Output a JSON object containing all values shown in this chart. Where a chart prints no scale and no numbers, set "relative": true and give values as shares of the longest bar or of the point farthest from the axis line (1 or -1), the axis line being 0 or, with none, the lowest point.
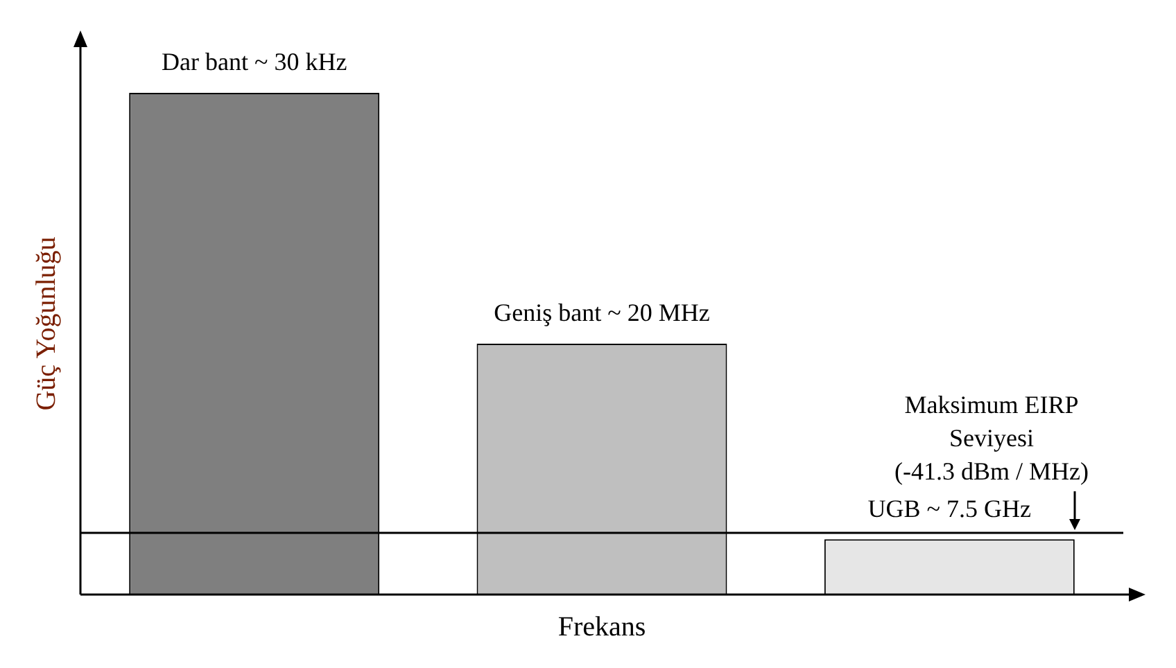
{
  "chart_data": {
    "type": "bar",
    "relative": true,
    "xlabel": "Frekans",
    "ylabel": "Güç Yoğunluğu",
    "categories": [
      null,
      null,
      null
    ],
    "values": [
      1,
      0.5,
      0.11
    ],
    "colors": [
      "#7f7f7f",
      "#bfbfbf",
      "#e6e6e6"
    ],
    "annotations": [
      "Dar bant ~ 30 kHz",
      "Geniş bant ~ 20 MHz",
      "UGB ~ 7.5 GHz"
    ],
    "ref_lines": [
      {
        "axis": "y",
        "value": 0.123,
        "label": "Maksimum EIRP Seviyesi (-41.3 dBm / MHz)",
        "color": "#000000"
      }
    ],
    "grid": false,
    "legend": false
  }
}
